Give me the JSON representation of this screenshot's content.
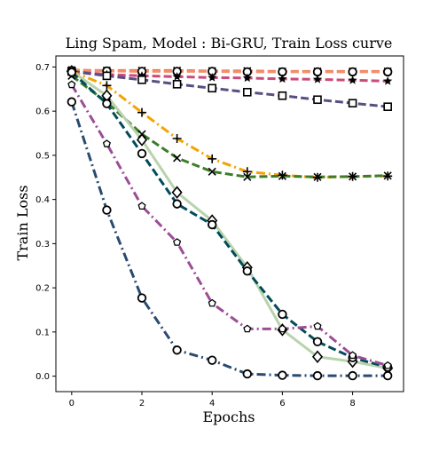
{
  "chart_data": {
    "type": "line",
    "title": "Ling Spam, Model : Bi-GRU, Train Loss curve",
    "xlabel": "Epochs",
    "ylabel": "Train Loss",
    "xlim": [
      -0.45,
      9.45
    ],
    "ylim": [
      -0.035,
      0.725
    ],
    "x_ticks": [
      0,
      2,
      4,
      6,
      8
    ],
    "y_ticks": [
      0.0,
      0.1,
      0.2,
      0.3,
      0.4,
      0.5,
      0.6,
      0.7
    ],
    "grid": false,
    "legend": "none",
    "x": [
      0,
      1,
      2,
      3,
      4,
      5,
      6,
      7,
      8,
      9
    ],
    "series": [
      {
        "values": [
          0.693,
          0.692,
          0.692,
          0.692,
          0.691,
          0.691,
          0.69,
          0.69,
          0.69,
          0.69
        ],
        "color": "#e9724c",
        "dash": "dashed",
        "marker": "x"
      },
      {
        "values": [
          0.692,
          0.691,
          0.69,
          0.69,
          0.69,
          0.689,
          0.689,
          0.689,
          0.689,
          0.689
        ],
        "color": "#f28e6b",
        "dash": "dashed",
        "marker": "circle"
      },
      {
        "values": [
          0.69,
          0.683,
          0.68,
          0.678,
          0.676,
          0.675,
          0.673,
          0.672,
          0.67,
          0.668
        ],
        "color": "#c94a7c",
        "dash": "dashed",
        "marker": "star"
      },
      {
        "values": [
          0.69,
          0.68,
          0.671,
          0.661,
          0.652,
          0.643,
          0.635,
          0.626,
          0.618,
          0.61
        ],
        "color": "#5a4e82",
        "dash": "dashed",
        "marker": "square"
      },
      {
        "values": [
          0.69,
          0.658,
          0.597,
          0.538,
          0.492,
          0.463,
          0.455,
          0.45,
          0.452,
          0.453
        ],
        "color": "#f4a300",
        "dash": "dashdot",
        "marker": "plus"
      },
      {
        "values": [
          0.68,
          0.62,
          0.548,
          0.494,
          0.463,
          0.451,
          0.453,
          0.451,
          0.452,
          0.454
        ],
        "color": "#3b7d2a",
        "dash": "dashed",
        "marker": "x"
      },
      {
        "values": [
          0.69,
          0.635,
          0.535,
          0.416,
          0.352,
          0.246,
          0.105,
          0.044,
          0.033,
          0.018
        ],
        "color": "#b9d3ad",
        "dash": "solid",
        "marker": "diamond"
      },
      {
        "values": [
          0.688,
          0.617,
          0.504,
          0.39,
          0.343,
          0.238,
          0.14,
          0.078,
          0.042,
          0.02
        ],
        "color": "#004c5a",
        "dash": "dashed",
        "marker": "circle"
      },
      {
        "values": [
          0.66,
          0.526,
          0.385,
          0.303,
          0.165,
          0.107,
          0.107,
          0.113,
          0.047,
          0.024
        ],
        "color": "#9b4d96",
        "dash": "dashdot",
        "marker": "pentagon"
      },
      {
        "values": [
          0.621,
          0.376,
          0.177,
          0.059,
          0.036,
          0.005,
          0.002,
          0.001,
          0.001,
          0.001
        ],
        "color": "#2a4a6e",
        "dash": "dashdot",
        "marker": "circle"
      }
    ]
  }
}
